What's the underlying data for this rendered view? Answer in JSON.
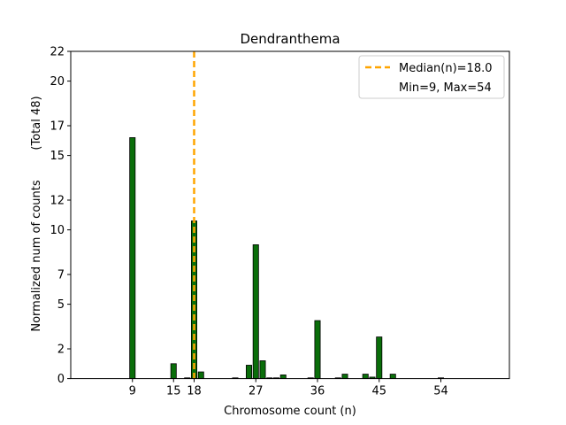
{
  "chart_data": {
    "type": "bar",
    "title": "Dendranthema",
    "xlabel": "Chromosome count (n)",
    "ylabel_main": "Normalized num of counts",
    "ylabel_total": "(Total 48)",
    "xlim": [
      0,
      64
    ],
    "ylim": [
      0,
      22
    ],
    "xticks": [
      9,
      15,
      18,
      27,
      36,
      45,
      54
    ],
    "yticks": [
      0,
      2,
      5,
      7,
      10,
      12,
      15,
      17,
      20,
      22
    ],
    "bar_color": "#0a6e0a",
    "median_color": "#ffa500",
    "median_value": 18,
    "bars": [
      {
        "x": 9,
        "value": 16.2
      },
      {
        "x": 15,
        "value": 1.0
      },
      {
        "x": 17,
        "value": 0.05
      },
      {
        "x": 18,
        "value": 10.6
      },
      {
        "x": 19,
        "value": 0.45
      },
      {
        "x": 24,
        "value": 0.05
      },
      {
        "x": 26,
        "value": 0.9
      },
      {
        "x": 27,
        "value": 9.0
      },
      {
        "x": 28,
        "value": 1.2
      },
      {
        "x": 29,
        "value": 0.05
      },
      {
        "x": 30,
        "value": 0.05
      },
      {
        "x": 31,
        "value": 0.25
      },
      {
        "x": 35,
        "value": 0.05
      },
      {
        "x": 36,
        "value": 3.9
      },
      {
        "x": 39,
        "value": 0.05
      },
      {
        "x": 40,
        "value": 0.3
      },
      {
        "x": 43,
        "value": 0.3
      },
      {
        "x": 44,
        "value": 0.1
      },
      {
        "x": 45,
        "value": 2.8
      },
      {
        "x": 47,
        "value": 0.3
      },
      {
        "x": 54,
        "value": 0.05
      }
    ],
    "legend": {
      "position": "upper right",
      "entries": [
        {
          "label": "Median(n)=18.0",
          "style": "dashed-line"
        },
        {
          "label": "Min=9, Max=54",
          "style": "none"
        }
      ]
    }
  }
}
